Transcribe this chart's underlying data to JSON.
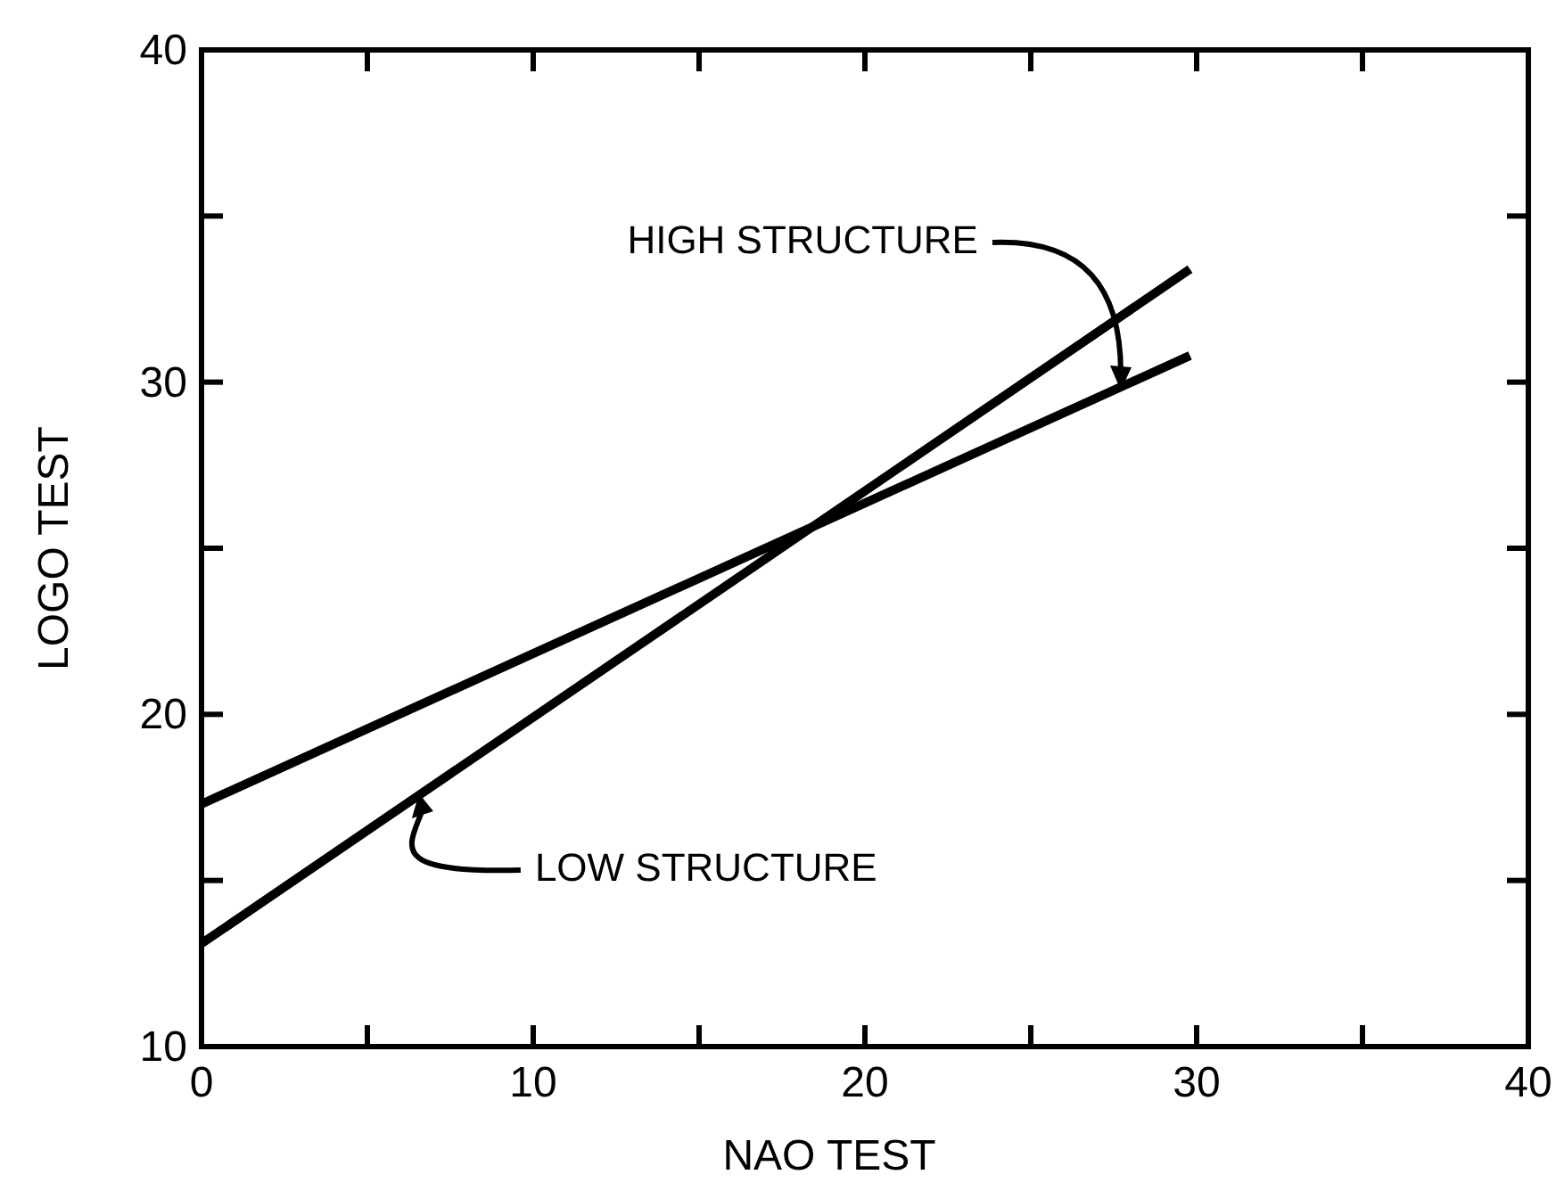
{
  "chart_data": {
    "type": "line",
    "xlabel": "NAO TEST",
    "ylabel": "LOGO TEST",
    "xlim": [
      0,
      40
    ],
    "ylim": [
      10,
      40
    ],
    "xticks": [
      0,
      {
        "value": 5,
        "label": null
      },
      10,
      {
        "value": 15,
        "label": null
      },
      20,
      {
        "value": 25,
        "label": null
      },
      30,
      {
        "value": 35,
        "label": null
      },
      40
    ],
    "yticks": [
      10,
      {
        "value": 15,
        "label": null
      },
      20,
      {
        "value": 25,
        "label": null
      },
      30,
      {
        "value": 35,
        "label": null
      },
      40
    ],
    "line_style": "solid",
    "x": [
      0,
      29.8
    ],
    "series": [
      {
        "name": "HIGH STRUCTURE",
        "color": "#000000",
        "values": [
          17.3,
          30.8
        ]
      },
      {
        "name": "LOW STRUCTURE",
        "color": "#000000",
        "values": [
          13.1,
          33.4
        ]
      }
    ]
  }
}
